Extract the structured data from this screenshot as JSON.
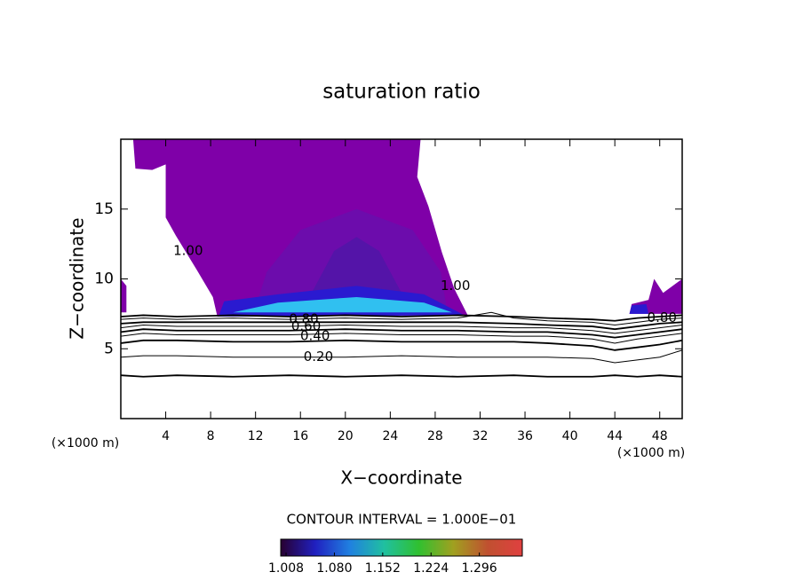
{
  "chart_data": {
    "type": "contour",
    "title": "saturation ratio",
    "x_label": "X−coordinate",
    "y_label": "Z−coordinate",
    "x_unit": "(×1000 m)",
    "y_unit": "(×1000 m)",
    "xlim": [
      0,
      50
    ],
    "ylim": [
      0,
      20
    ],
    "xticks": [
      4,
      8,
      12,
      16,
      20,
      24,
      28,
      32,
      36,
      40,
      44,
      48
    ],
    "yticks": [
      5,
      10,
      15
    ],
    "regions": [
      {
        "color": "#7f00a8",
        "x": [
          1.1,
          26.7,
          26.4,
          27.4,
          28.6,
          29.7,
          30.9,
          8.6,
          8.2,
          6.8,
          4.9,
          4.0,
          4.0,
          2.8,
          1.3
        ],
        "y": [
          20,
          20,
          17.3,
          15.2,
          11.9,
          9.3,
          7.4,
          7.3,
          8.7,
          10.6,
          13.1,
          14.4,
          18.2,
          17.8,
          17.9
        ]
      },
      {
        "color": "#6c0cac",
        "x": [
          12,
          13,
          16,
          21,
          26,
          28.5,
          29
        ],
        "y": [
          8,
          10.5,
          13.5,
          15,
          13.5,
          10.5,
          8
        ]
      },
      {
        "color": "#5414a8",
        "x": [
          17,
          19,
          21,
          23,
          25
        ],
        "y": [
          9,
          12,
          13,
          12,
          9
        ]
      },
      {
        "color": "#2a1ad0",
        "x": [
          8.7,
          9.2,
          14,
          21,
          27,
          30.6
        ],
        "y": [
          7.3,
          8.4,
          8.9,
          9.5,
          8.9,
          7.4
        ]
      },
      {
        "color": "#30c0f0",
        "x": [
          10,
          14,
          21,
          27,
          29.5
        ],
        "y": [
          7.6,
          8.3,
          8.7,
          8.3,
          7.6
        ]
      },
      {
        "color": "#7f00a8",
        "x": [
          45.3,
          45.5,
          47,
          47.5,
          48.3,
          50,
          50
        ],
        "y": [
          7.5,
          8.2,
          8.5,
          10,
          9,
          10,
          7.5
        ]
      },
      {
        "color": "#2a1ad0",
        "x": [
          45.3,
          45.5,
          46.8,
          47
        ],
        "y": [
          7.5,
          8.1,
          8.2,
          7.5
        ]
      },
      {
        "color": "#7f00a8",
        "x": [
          0,
          0,
          0.5,
          0.5
        ],
        "y": [
          7.6,
          10,
          9.5,
          7.6
        ]
      }
    ],
    "contours": [
      {
        "level": 0.1,
        "x": [
          0,
          2,
          5,
          10,
          15,
          20,
          25,
          30,
          35,
          38,
          42,
          44,
          46,
          48,
          50
        ],
        "y": [
          3.1,
          3.0,
          3.1,
          3.0,
          3.1,
          3.0,
          3.1,
          3.0,
          3.1,
          3.0,
          3.0,
          3.1,
          3.0,
          3.1,
          3.0
        ]
      },
      {
        "level": 0.2,
        "x": [
          0,
          2,
          5,
          10,
          15,
          20,
          25,
          30,
          35,
          38,
          42,
          44,
          46,
          48,
          50
        ],
        "y": [
          4.4,
          4.5,
          4.5,
          4.4,
          4.4,
          4.4,
          4.5,
          4.4,
          4.4,
          4.4,
          4.3,
          4.0,
          4.2,
          4.4,
          4.9
        ]
      },
      {
        "level": 0.3,
        "x": [
          0,
          2,
          5,
          10,
          15,
          20,
          25,
          30,
          35,
          38,
          42,
          44,
          46,
          48,
          50
        ],
        "y": [
          5.4,
          5.6,
          5.6,
          5.5,
          5.5,
          5.6,
          5.5,
          5.5,
          5.5,
          5.4,
          5.2,
          4.9,
          5.1,
          5.3,
          5.6
        ]
      },
      {
        "level": 0.4,
        "x": [
          0,
          2,
          5,
          10,
          15,
          20,
          25,
          30,
          35,
          38,
          42,
          44,
          46,
          48,
          50
        ],
        "y": [
          5.9,
          6.1,
          6.0,
          6.0,
          6.0,
          6.1,
          6.0,
          6.0,
          5.9,
          5.9,
          5.7,
          5.4,
          5.7,
          5.9,
          6.1
        ]
      },
      {
        "level": 0.5,
        "x": [
          0,
          2,
          5,
          10,
          15,
          20,
          25,
          30,
          35,
          38,
          42,
          44,
          46,
          48,
          50
        ],
        "y": [
          6.2,
          6.4,
          6.3,
          6.3,
          6.3,
          6.4,
          6.3,
          6.3,
          6.2,
          6.2,
          6.0,
          5.8,
          6.0,
          6.2,
          6.4
        ]
      },
      {
        "level": 0.6,
        "x": [
          0,
          2,
          5,
          10,
          15,
          20,
          25,
          30,
          35,
          38,
          42,
          44,
          46,
          48,
          50
        ],
        "y": [
          6.5,
          6.7,
          6.6,
          6.6,
          6.6,
          6.7,
          6.6,
          6.6,
          6.5,
          6.5,
          6.3,
          6.1,
          6.3,
          6.5,
          6.7
        ]
      },
      {
        "level": 0.7,
        "x": [
          0,
          2,
          5,
          10,
          15,
          20,
          25,
          30,
          35,
          38,
          42,
          44,
          46,
          48,
          50
        ],
        "y": [
          6.8,
          6.9,
          6.9,
          6.9,
          6.9,
          6.9,
          6.9,
          6.9,
          6.8,
          6.7,
          6.6,
          6.4,
          6.6,
          6.8,
          6.9
        ]
      },
      {
        "level": 0.8,
        "x": [
          0,
          2,
          5,
          10,
          15,
          20,
          25,
          30,
          33,
          35,
          38,
          42,
          44,
          46,
          48,
          50
        ],
        "y": [
          7.1,
          7.2,
          7.1,
          7.2,
          7.1,
          7.2,
          7.1,
          7.2,
          7.6,
          7.2,
          7.0,
          6.9,
          6.7,
          6.9,
          7.1,
          7.2
        ]
      },
      {
        "level": 0.9,
        "x": [
          0,
          2,
          5,
          10,
          15,
          20,
          25,
          30,
          35,
          38,
          42,
          44,
          46,
          48,
          50
        ],
        "y": [
          7.3,
          7.4,
          7.3,
          7.4,
          7.3,
          7.4,
          7.3,
          7.4,
          7.3,
          7.2,
          7.1,
          7.0,
          7.2,
          7.3,
          7.4
        ]
      }
    ],
    "contour_labels": [
      {
        "text": "1.00",
        "x": 6.0,
        "y": 12.0
      },
      {
        "text": "1.00",
        "x": 29.8,
        "y": 9.5
      },
      {
        "text": "0.80",
        "x": 16.3,
        "y": 7.1
      },
      {
        "text": "0.60",
        "x": 16.5,
        "y": 6.6
      },
      {
        "text": "0.40",
        "x": 17.3,
        "y": 5.9
      },
      {
        "text": "0.20",
        "x": 17.6,
        "y": 4.4
      },
      {
        "text": "0.80",
        "x": 48.2,
        "y": 7.2
      }
    ],
    "contour_interval": "CONTOUR INTERVAL = 1.000E−01",
    "colorbar": {
      "clim": [
        1.0,
        1.36
      ],
      "colors": [
        "#280030",
        "#2020c0",
        "#2080e0",
        "#20c0a0",
        "#30c030",
        "#a0a020",
        "#c05030",
        "#e04040"
      ],
      "ticks": [
        {
          "value": 1.008,
          "label": "1.008"
        },
        {
          "value": 1.08,
          "label": "1.080"
        },
        {
          "value": 1.152,
          "label": "1.152"
        },
        {
          "value": 1.224,
          "label": "1.224"
        },
        {
          "value": 1.296,
          "label": "1.296"
        }
      ]
    }
  }
}
